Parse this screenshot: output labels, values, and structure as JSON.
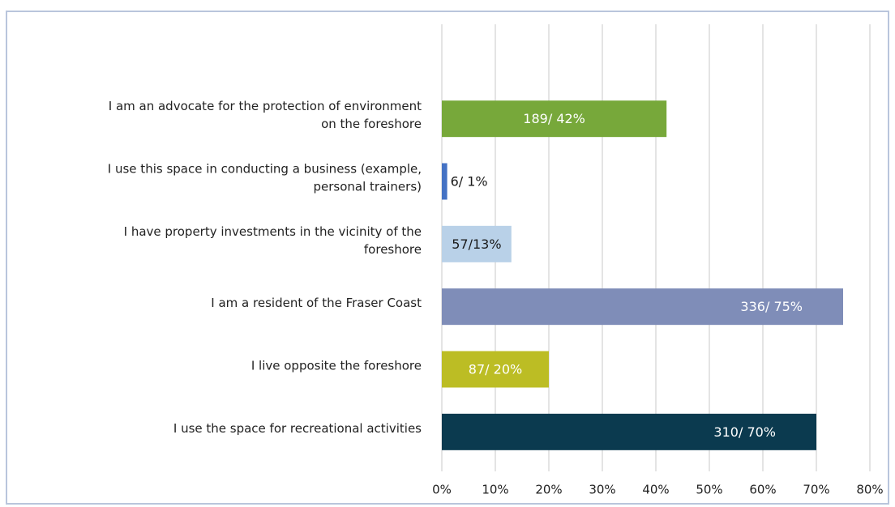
{
  "chart_data": {
    "type": "barh",
    "categories": [
      [
        "I am an advocate for the protection of environment",
        "on the foreshore"
      ],
      [
        "I use this space in conducting a business (example,",
        "personal trainers)"
      ],
      [
        "I have property investments in the vicinity of the",
        "foreshore"
      ],
      [
        "I am a resident of the Fraser Coast"
      ],
      [
        "I live opposite the foreshore"
      ],
      [
        "I use the space for recreational activities"
      ]
    ],
    "values": [
      42,
      1,
      13,
      75,
      20,
      70
    ],
    "value_labels": [
      "189/ 42%",
      "6/ 1%",
      "57/13%",
      "336/ 75%",
      "87/ 20%",
      "310/ 70%"
    ],
    "colors": [
      "#77a83a",
      "#4472c4",
      "#b9d1e8",
      "#7f8db8",
      "#bcbd24",
      "#0b3a4f"
    ],
    "value_label_colors": [
      "#ffffff",
      "#1a1a1a",
      "#1a1a1a",
      "#ffffff",
      "#ffffff",
      "#ffffff"
    ],
    "xlim": [
      0,
      80
    ],
    "xticks": [
      {
        "value": 0,
        "label": "0%"
      },
      {
        "value": 10,
        "label": "10%"
      },
      {
        "value": 20,
        "label": "20%"
      },
      {
        "value": 30,
        "label": "30%"
      },
      {
        "value": 40,
        "label": "40%"
      },
      {
        "value": 50,
        "label": "50%"
      },
      {
        "value": 60,
        "label": "60%"
      },
      {
        "value": 70,
        "label": "70%"
      },
      {
        "value": 80,
        "label": "80%"
      }
    ],
    "grid": true
  }
}
